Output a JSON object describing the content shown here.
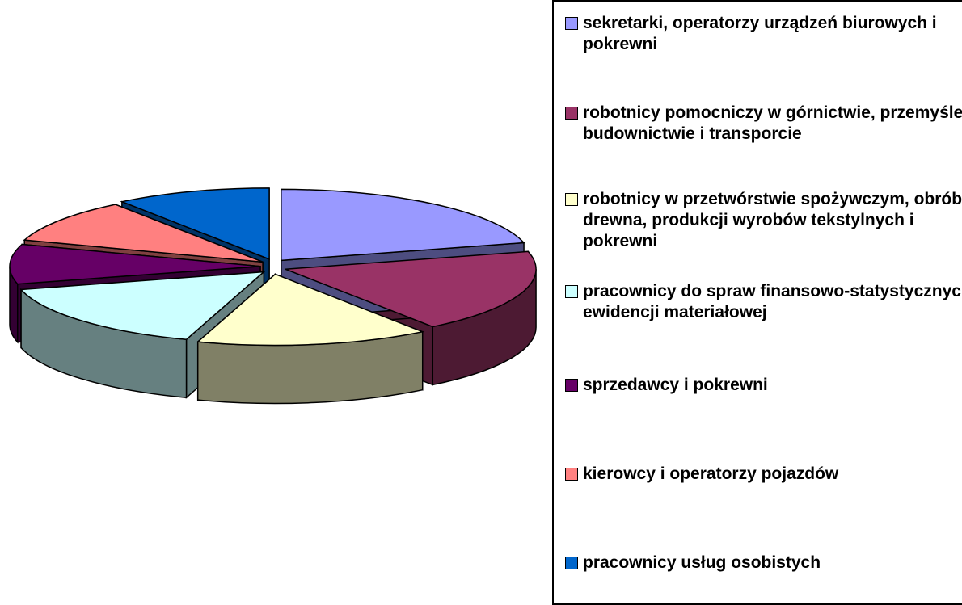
{
  "chart_data": {
    "type": "pie",
    "categories": [
      "sekretarki, operatorzy urządzeń biurowych i pokrewni",
      "robotnicy pomocniczy w górnictwie, przemyśle, budownictwie i transporcie",
      "robotnicy w przetwórstwie spożywczym, obróbce drewna, produkcji wyrobów tekstylnych i pokrewni",
      "pracownicy do spraw finansowo-statystycznych i ewidencji materiałowej",
      "sprzedawcy i pokrewni",
      "kierowcy i operatorzy pojazdów",
      "pracownicy usług osobistych"
    ],
    "values": [
      21,
      19,
      15,
      16,
      9,
      10,
      10
    ],
    "colors": [
      "#9999ff",
      "#993366",
      "#ffffcc",
      "#ccffff",
      "#660066",
      "#ff8080",
      "#0066cc"
    ],
    "legend": "right"
  }
}
